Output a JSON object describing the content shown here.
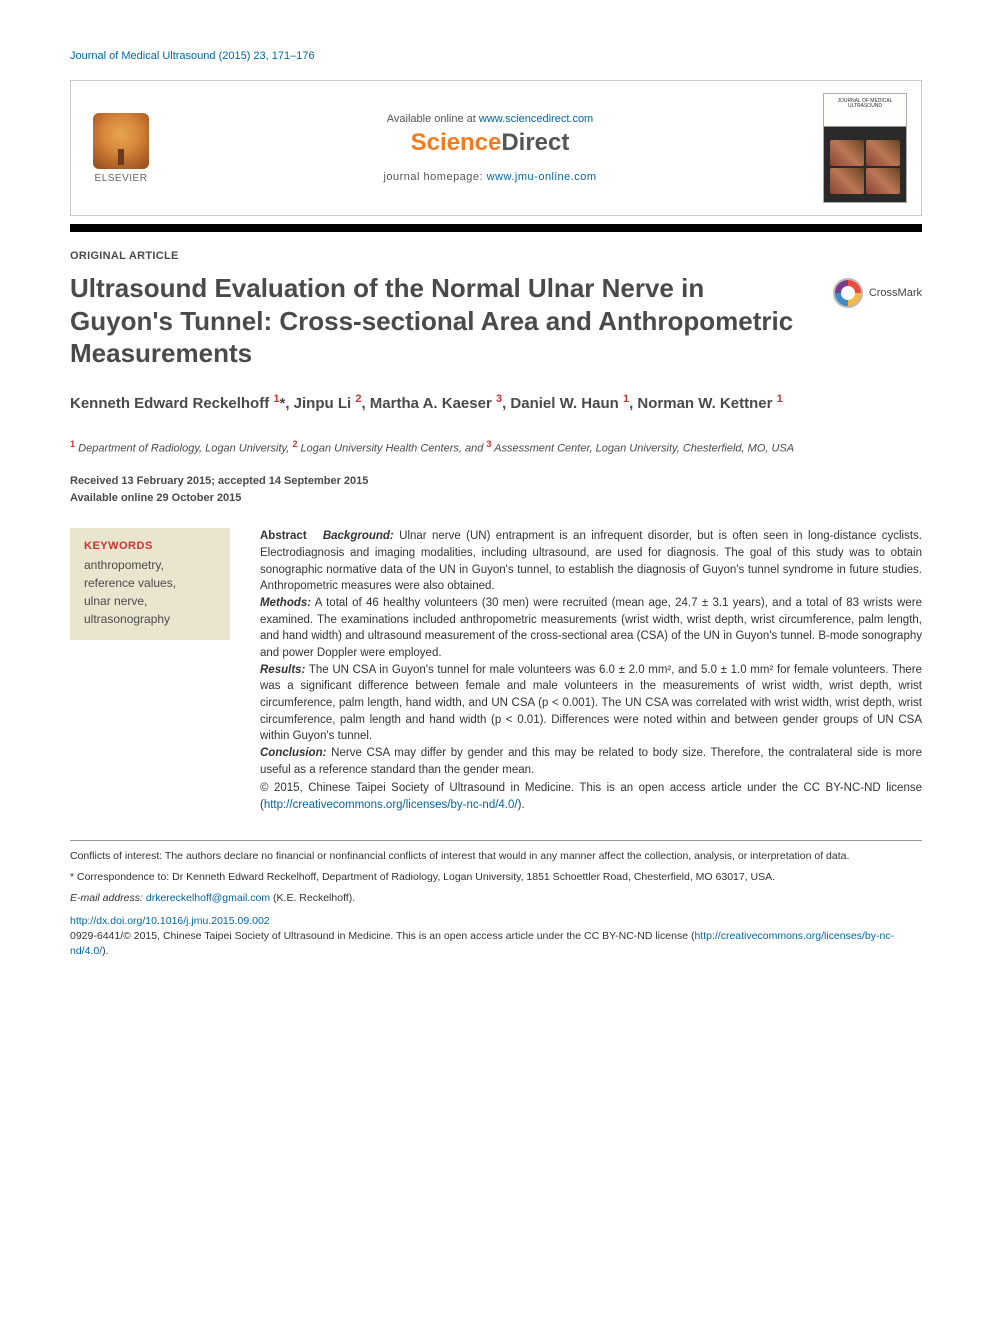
{
  "journal_ref": "Journal of Medical Ultrasound (2015) 23, 171–176",
  "header": {
    "available_prefix": "Available online at ",
    "available_url": "www.sciencedirect.com",
    "sd_logo_left": "Science",
    "sd_logo_right": "Direct",
    "journal_home_prefix": "journal homepage: ",
    "journal_home_url": "www.jmu-online.com",
    "elsevier_label": "ELSEVIER",
    "cover_title": "JOURNAL OF MEDICAL ULTRASOUND"
  },
  "article_type": "ORIGINAL ARTICLE",
  "title": "Ultrasound Evaluation of the Normal Ulnar Nerve in Guyon's Tunnel: Cross-sectional Area and Anthropometric Measurements",
  "crossmark_label": "CrossMark",
  "authors_html": "Kenneth Edward Reckelhoff <sup>1</sup>*, Jinpu Li <sup>2</sup>, Martha A. Kaeser <sup>3</sup>, Daniel W. Haun <sup>1</sup>, Norman W. Kettner <sup>1</sup>",
  "affiliations_html": "<sup>1</sup> Department of Radiology, Logan University,  <sup>2</sup> Logan University Health Centers, and  <sup>3</sup> Assessment Center, Logan University, Chesterfield, MO, USA",
  "dates": {
    "received_accepted": "Received 13 February 2015; accepted 14 September 2015",
    "online": "Available online 29 October 2015"
  },
  "keywords": {
    "heading": "KEYWORDS",
    "items": "anthropometry,\nreference values,\nulnar nerve,\nultrasonography"
  },
  "abstract": {
    "lead": "Abstract",
    "background_label": "Background:",
    "background": " Ulnar nerve (UN) entrapment is an infrequent disorder, but is often seen in long-distance cyclists. Electrodiagnosis and imaging modalities, including ultrasound, are used for diagnosis. The goal of this study was to obtain sonographic normative data of the UN in Guyon's tunnel, to establish the diagnosis of Guyon's tunnel syndrome in future studies. Anthropometric measures were also obtained.",
    "methods_label": "Methods:",
    "methods": " A total of 46 healthy volunteers (30 men) were recruited (mean age, 24.7 ± 3.1 years), and a total of 83 wrists were examined. The examinations included anthropometric measurements (wrist width, wrist depth, wrist circumference, palm length, and hand width) and ultrasound measurement of the cross-sectional area (CSA) of the UN in Guyon's tunnel. B-mode sonography and power Doppler were employed.",
    "results_label": "Results:",
    "results": " The UN CSA in Guyon's tunnel for male volunteers was 6.0 ± 2.0 mm², and 5.0 ± 1.0 mm² for female volunteers. There was a significant difference between female and male volunteers in the measurements of wrist width, wrist depth, wrist circumference, palm length, hand width, and UN CSA (p < 0.001). The UN CSA was correlated with wrist width, wrist depth, wrist circumference, palm length and hand width (p < 0.01). Differences were noted within and between gender groups of UN CSA within Guyon's tunnel.",
    "conclusion_label": "Conclusion:",
    "conclusion": " Nerve CSA may differ by gender and this may be related to body size. Therefore, the contralateral side is more useful as a reference standard than the gender mean.",
    "copyright": "© 2015, Chinese Taipei Society of Ultrasound in Medicine. This is an open access article under the CC BY-NC-ND license (",
    "cc_url": "http://creativecommons.org/licenses/by-nc-nd/4.0/",
    "copyright_end": ")."
  },
  "footnotes": {
    "conflicts": "Conflicts of interest: The authors declare no financial or nonfinancial conflicts of interest that would in any manner affect the collection, analysis, or interpretation of data.",
    "correspondence": "* Correspondence to: Dr Kenneth Edward Reckelhoff, Department of Radiology, Logan University, 1851 Schoettler Road, Chesterfield, MO 63017, USA.",
    "email_label": "E-mail address: ",
    "email": "drkereckelhoff@gmail.com",
    "email_suffix": " (K.E. Reckelhoff).",
    "doi": "http://dx.doi.org/10.1016/j.jmu.2015.09.002",
    "issn_line": "0929-6441/© 2015, Chinese Taipei Society of Ultrasound in Medicine. This is an open access article under the CC BY-NC-ND license (",
    "issn_url": "http://creativecommons.org/licenses/by-nc-nd/4.0/",
    "issn_end": ")."
  },
  "colors": {
    "link": "#0066aa",
    "sd_orange": "#f47b20",
    "heading_gray": "#4a4a4a",
    "kw_red": "#cc3333",
    "kw_bg": "#ebe4ce"
  }
}
